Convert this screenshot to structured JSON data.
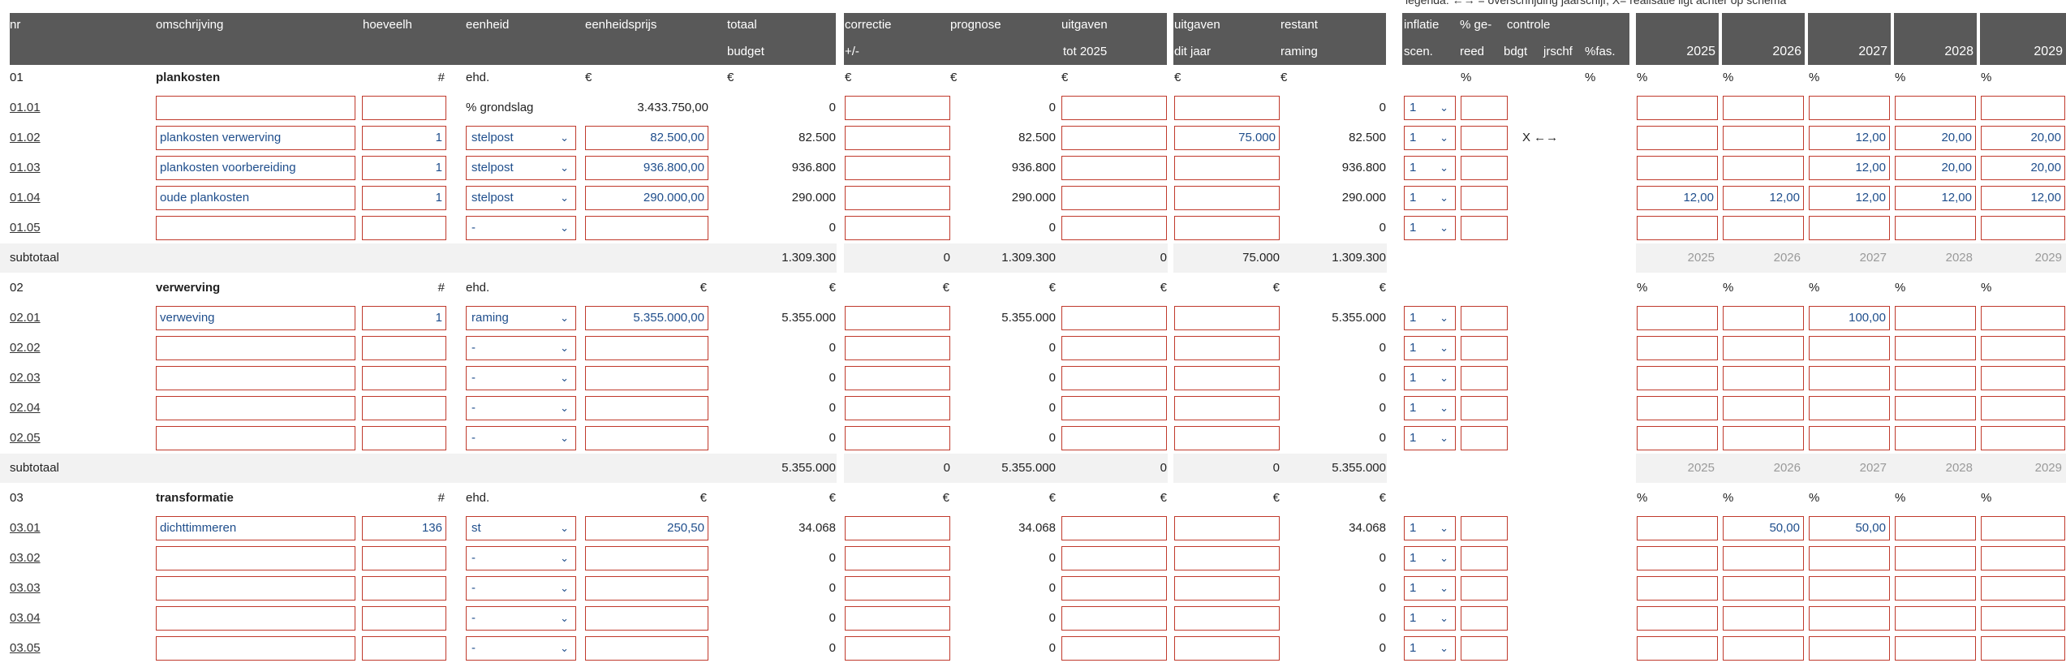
{
  "legend": "legenda: ←→ = overschrijding jaarschijf, X= realisatie ligt achter op schema",
  "headers": {
    "nr": "nr",
    "omschrijving": "omschrijving",
    "hoeveelh": "hoeveelh",
    "eenheid": "eenheid",
    "eenheidsprijs": "eenheidsprijs",
    "totaal_1": "totaal",
    "totaal_2": "budget",
    "correctie_1": "correctie",
    "correctie_2": "+/-",
    "prognose": "prognose",
    "uitgaven_1": "uitgaven",
    "uitgaven_2": "tot 2025",
    "dit_jaar_1": "uitgaven",
    "dit_jaar_2": "dit jaar",
    "restant_1": "restant",
    "restant_2": "raming",
    "inflatie_1": "inflatie",
    "inflatie_2": "scen.",
    "gereed_1": "% ge-",
    "gereed_2": "reed",
    "controle": "controle",
    "bdgt": "bdgt",
    "jrschf": "jrschf",
    "fas": "%fas."
  },
  "years": [
    "2025",
    "2026",
    "2027",
    "2028",
    "2029"
  ],
  "sections": [
    {
      "nr": "01",
      "title": "plankosten",
      "qty_unit": "#",
      "unit_label": "ehd.",
      "price_sym": "€",
      "pct": "%",
      "fas": "%",
      "rows": [
        {
          "nr": "01.01",
          "omschr": "",
          "qty": "",
          "unit": "% grondslag",
          "unit_select": false,
          "price": "3.433.750,00",
          "price_input": false,
          "totaal": "0",
          "prognose": "0",
          "dit_jaar": "",
          "restant": "0",
          "scen": "1",
          "controle": "",
          "years": [
            "",
            "",
            "",
            "",
            ""
          ]
        },
        {
          "nr": "01.02",
          "omschr": "plankosten verwerving",
          "qty": "1",
          "unit": "stelpost",
          "unit_select": true,
          "price": "82.500,00",
          "price_input": true,
          "totaal": "82.500",
          "prognose": "82.500",
          "dit_jaar": "75.000",
          "restant": "82.500",
          "scen": "1",
          "controle": "X  ←→",
          "years": [
            "",
            "",
            "12,00",
            "20,00",
            "20,00"
          ]
        },
        {
          "nr": "01.03",
          "omschr": "plankosten voorbereiding",
          "qty": "1",
          "unit": "stelpost",
          "unit_select": true,
          "price": "936.800,00",
          "price_input": true,
          "totaal": "936.800",
          "prognose": "936.800",
          "dit_jaar": "",
          "restant": "936.800",
          "scen": "1",
          "controle": "",
          "years": [
            "",
            "",
            "12,00",
            "20,00",
            "20,00"
          ]
        },
        {
          "nr": "01.04",
          "omschr": "oude plankosten",
          "qty": "1",
          "unit": "stelpost",
          "unit_select": true,
          "price": "290.000,00",
          "price_input": true,
          "totaal": "290.000",
          "prognose": "290.000",
          "dit_jaar": "",
          "restant": "290.000",
          "scen": "1",
          "controle": "",
          "years": [
            "12,00",
            "12,00",
            "12,00",
            "12,00",
            "12,00"
          ]
        },
        {
          "nr": "01.05",
          "omschr": "",
          "qty": "",
          "unit": "-",
          "unit_select": true,
          "price": "",
          "price_input": true,
          "totaal": "0",
          "prognose": "0",
          "dit_jaar": "",
          "restant": "0",
          "scen": "1",
          "controle": "",
          "years": [
            "",
            "",
            "",
            "",
            ""
          ]
        }
      ],
      "subtotal": {
        "label": "subtotaal",
        "totaal": "1.309.300",
        "correctie": "0",
        "prognose": "1.309.300",
        "uitgaven": "0",
        "dit_jaar": "75.000",
        "restant": "1.309.300"
      }
    },
    {
      "nr": "02",
      "title": "verwerving",
      "qty_unit": "#",
      "unit_label": "ehd.",
      "price_sym": "€",
      "pct": "",
      "fas": "",
      "rows": [
        {
          "nr": "02.01",
          "omschr": "verweving",
          "qty": "1",
          "unit": "raming",
          "unit_select": true,
          "price": "5.355.000,00",
          "price_input": true,
          "totaal": "5.355.000",
          "prognose": "5.355.000",
          "dit_jaar": "",
          "restant": "5.355.000",
          "scen": "1",
          "controle": "",
          "years": [
            "",
            "",
            "100,00",
            "",
            ""
          ]
        },
        {
          "nr": "02.02",
          "omschr": "",
          "qty": "",
          "unit": "-",
          "unit_select": true,
          "price": "",
          "price_input": true,
          "totaal": "0",
          "prognose": "0",
          "dit_jaar": "",
          "restant": "0",
          "scen": "1",
          "controle": "",
          "years": [
            "",
            "",
            "",
            "",
            ""
          ]
        },
        {
          "nr": "02.03",
          "omschr": "",
          "qty": "",
          "unit": "-",
          "unit_select": true,
          "price": "",
          "price_input": true,
          "totaal": "0",
          "prognose": "0",
          "dit_jaar": "",
          "restant": "0",
          "scen": "1",
          "controle": "",
          "years": [
            "",
            "",
            "",
            "",
            ""
          ]
        },
        {
          "nr": "02.04",
          "omschr": "",
          "qty": "",
          "unit": "-",
          "unit_select": true,
          "price": "",
          "price_input": true,
          "totaal": "0",
          "prognose": "0",
          "dit_jaar": "",
          "restant": "0",
          "scen": "1",
          "controle": "",
          "years": [
            "",
            "",
            "",
            "",
            ""
          ]
        },
        {
          "nr": "02.05",
          "omschr": "",
          "qty": "",
          "unit": "-",
          "unit_select": true,
          "price": "",
          "price_input": true,
          "totaal": "0",
          "prognose": "0",
          "dit_jaar": "",
          "restant": "0",
          "scen": "1",
          "controle": "",
          "years": [
            "",
            "",
            "",
            "",
            ""
          ]
        }
      ],
      "subtotal": {
        "label": "subtotaal",
        "totaal": "5.355.000",
        "correctie": "0",
        "prognose": "5.355.000",
        "uitgaven": "0",
        "dit_jaar": "0",
        "restant": "5.355.000"
      }
    },
    {
      "nr": "03",
      "title": "transformatie",
      "qty_unit": "#",
      "unit_label": "ehd.",
      "price_sym": "€",
      "pct": "",
      "fas": "",
      "rows": [
        {
          "nr": "03.01",
          "omschr": "dichttimmeren",
          "qty": "136",
          "unit": "st",
          "unit_select": true,
          "price": "250,50",
          "price_input": true,
          "totaal": "34.068",
          "prognose": "34.068",
          "dit_jaar": "",
          "restant": "34.068",
          "scen": "1",
          "controle": "",
          "years": [
            "",
            "50,00",
            "50,00",
            "",
            ""
          ]
        },
        {
          "nr": "03.02",
          "omschr": "",
          "qty": "",
          "unit": "-",
          "unit_select": true,
          "price": "",
          "price_input": true,
          "totaal": "0",
          "prognose": "0",
          "dit_jaar": "",
          "restant": "0",
          "scen": "1",
          "controle": "",
          "years": [
            "",
            "",
            "",
            "",
            ""
          ]
        },
        {
          "nr": "03.03",
          "omschr": "",
          "qty": "",
          "unit": "-",
          "unit_select": true,
          "price": "",
          "price_input": true,
          "totaal": "0",
          "prognose": "0",
          "dit_jaar": "",
          "restant": "0",
          "scen": "1",
          "controle": "",
          "years": [
            "",
            "",
            "",
            "",
            ""
          ]
        },
        {
          "nr": "03.04",
          "omschr": "",
          "qty": "",
          "unit": "-",
          "unit_select": true,
          "price": "",
          "price_input": true,
          "totaal": "0",
          "prognose": "0",
          "dit_jaar": "",
          "restant": "0",
          "scen": "1",
          "controle": "",
          "years": [
            "",
            "",
            "",
            "",
            ""
          ]
        },
        {
          "nr": "03.05",
          "omschr": "",
          "qty": "",
          "unit": "-",
          "unit_select": true,
          "price": "",
          "price_input": true,
          "totaal": "0",
          "prognose": "0",
          "dit_jaar": "",
          "restant": "0",
          "scen": "1",
          "controle": "",
          "years": [
            "",
            "",
            "",
            "",
            ""
          ]
        }
      ]
    }
  ],
  "colors": {
    "header_bg": "#595959",
    "input_border": "#c0392b",
    "input_text": "#1f4e8c",
    "subtotal_bg": "#f2f2f2"
  }
}
